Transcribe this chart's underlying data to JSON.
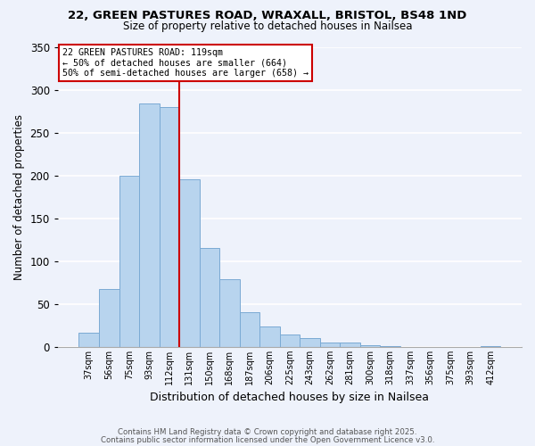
{
  "title1": "22, GREEN PASTURES ROAD, WRAXALL, BRISTOL, BS48 1ND",
  "title2": "Size of property relative to detached houses in Nailsea",
  "xlabel": "Distribution of detached houses by size in Nailsea",
  "ylabel": "Number of detached properties",
  "bar_labels": [
    "37sqm",
    "56sqm",
    "75sqm",
    "93sqm",
    "112sqm",
    "131sqm",
    "150sqm",
    "168sqm",
    "187sqm",
    "206sqm",
    "225sqm",
    "243sqm",
    "262sqm",
    "281sqm",
    "300sqm",
    "318sqm",
    "337sqm",
    "356sqm",
    "375sqm",
    "393sqm",
    "412sqm"
  ],
  "bar_values": [
    17,
    68,
    200,
    284,
    280,
    196,
    115,
    79,
    40,
    24,
    14,
    10,
    5,
    5,
    2,
    1,
    0,
    0,
    0,
    0,
    1
  ],
  "bar_color": "#b8d4ee",
  "bar_edge_color": "#7baad4",
  "vline_x": 4.5,
  "vline_color": "#cc0000",
  "annotation_title": "22 GREEN PASTURES ROAD: 119sqm",
  "annotation_line1": "← 50% of detached houses are smaller (664)",
  "annotation_line2": "50% of semi-detached houses are larger (658) →",
  "annotation_box_color": "#ffffff",
  "annotation_box_edge": "#cc0000",
  "ylim": [
    0,
    350
  ],
  "yticks": [
    0,
    50,
    100,
    150,
    200,
    250,
    300,
    350
  ],
  "footnote1": "Contains HM Land Registry data © Crown copyright and database right 2025.",
  "footnote2": "Contains public sector information licensed under the Open Government Licence v3.0.",
  "bg_color": "#eef2fb"
}
